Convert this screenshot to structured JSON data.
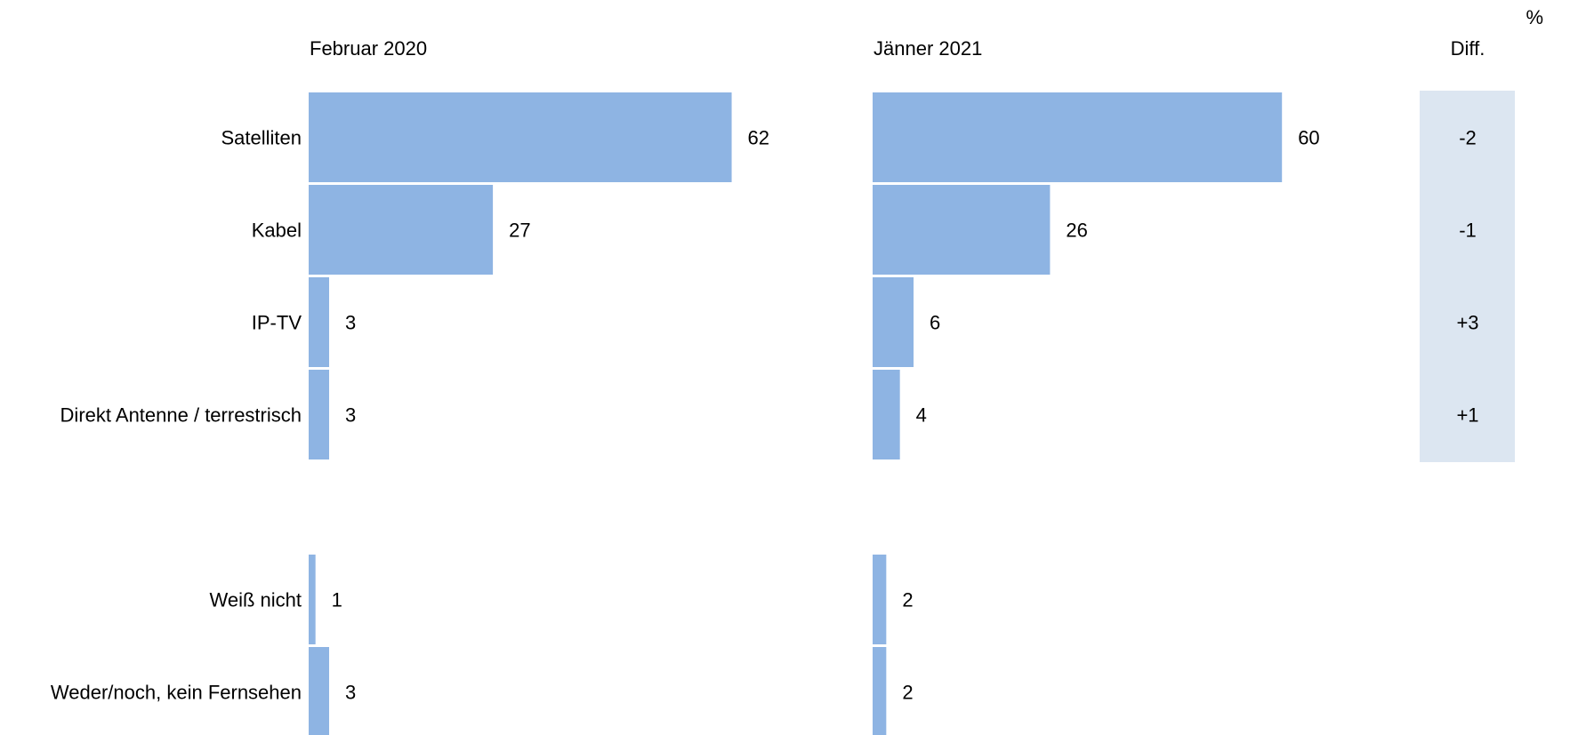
{
  "chart_data": {
    "type": "bar",
    "unit": "%",
    "diff_label": "Diff.",
    "categories": [
      "Satelliten",
      "Kabel",
      "IP-TV",
      "Direkt Antenne / terrestrisch",
      "Weiß  nicht",
      "Weder/noch, kein Fernsehen"
    ],
    "series": [
      {
        "name": "Februar 2020",
        "values": [
          62,
          27,
          3,
          3,
          1,
          3
        ]
      },
      {
        "name": "Jänner 2021",
        "values": [
          60,
          26,
          6,
          4,
          2,
          2
        ]
      }
    ],
    "diff": [
      "-2",
      "-1",
      "+3",
      "+1"
    ],
    "colors": {
      "bar": "#8eb4e3",
      "diff_bg": "#dce6f1",
      "negative": "#e00000",
      "positive": "#000000"
    }
  }
}
